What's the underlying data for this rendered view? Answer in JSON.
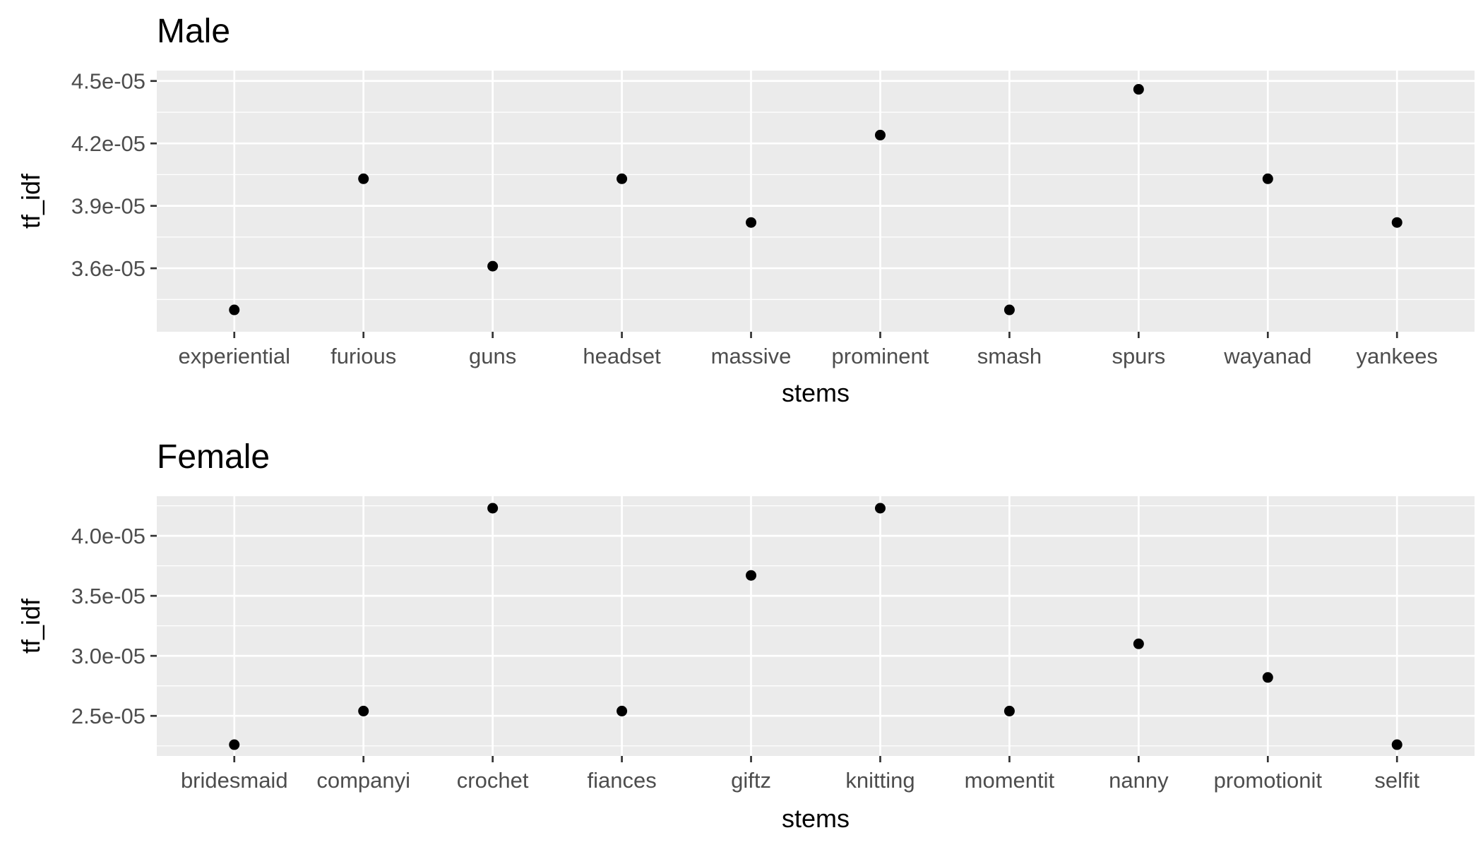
{
  "chart_data": [
    {
      "type": "scatter",
      "title": "Male",
      "xlabel": "stems",
      "ylabel": "tf_idf",
      "categories": [
        "experiential",
        "furious",
        "guns",
        "headset",
        "massive",
        "prominent",
        "smash",
        "spurs",
        "wayanad",
        "yankees"
      ],
      "values": [
        3.4e-05,
        4.03e-05,
        3.61e-05,
        4.03e-05,
        3.82e-05,
        4.24e-05,
        3.4e-05,
        4.46e-05,
        4.03e-05,
        3.82e-05
      ],
      "yticks": [
        3.6e-05,
        3.9e-05,
        4.2e-05,
        4.5e-05
      ],
      "ytick_labels": [
        "3.6e-05",
        "3.9e-05",
        "4.2e-05",
        "4.5e-05"
      ],
      "ylim": [
        3.295e-05,
        4.55e-05
      ],
      "grid": true
    },
    {
      "type": "scatter",
      "title": "Female",
      "xlabel": "stems",
      "ylabel": "tf_idf",
      "categories": [
        "bridesmaid",
        "companyi",
        "crochet",
        "fiances",
        "giftz",
        "knitting",
        "momentit",
        "nanny",
        "promotionit",
        "selfit"
      ],
      "values": [
        2.26e-05,
        2.54e-05,
        4.23e-05,
        2.54e-05,
        3.67e-05,
        4.23e-05,
        2.54e-05,
        3.1e-05,
        2.82e-05,
        2.26e-05
      ],
      "yticks": [
        2.5e-05,
        3e-05,
        3.5e-05,
        4e-05
      ],
      "ytick_labels": [
        "2.5e-05",
        "3.0e-05",
        "3.5e-05",
        "4.0e-05"
      ],
      "ylim": [
        2.166e-05,
        4.33e-05
      ],
      "grid": true
    }
  ]
}
